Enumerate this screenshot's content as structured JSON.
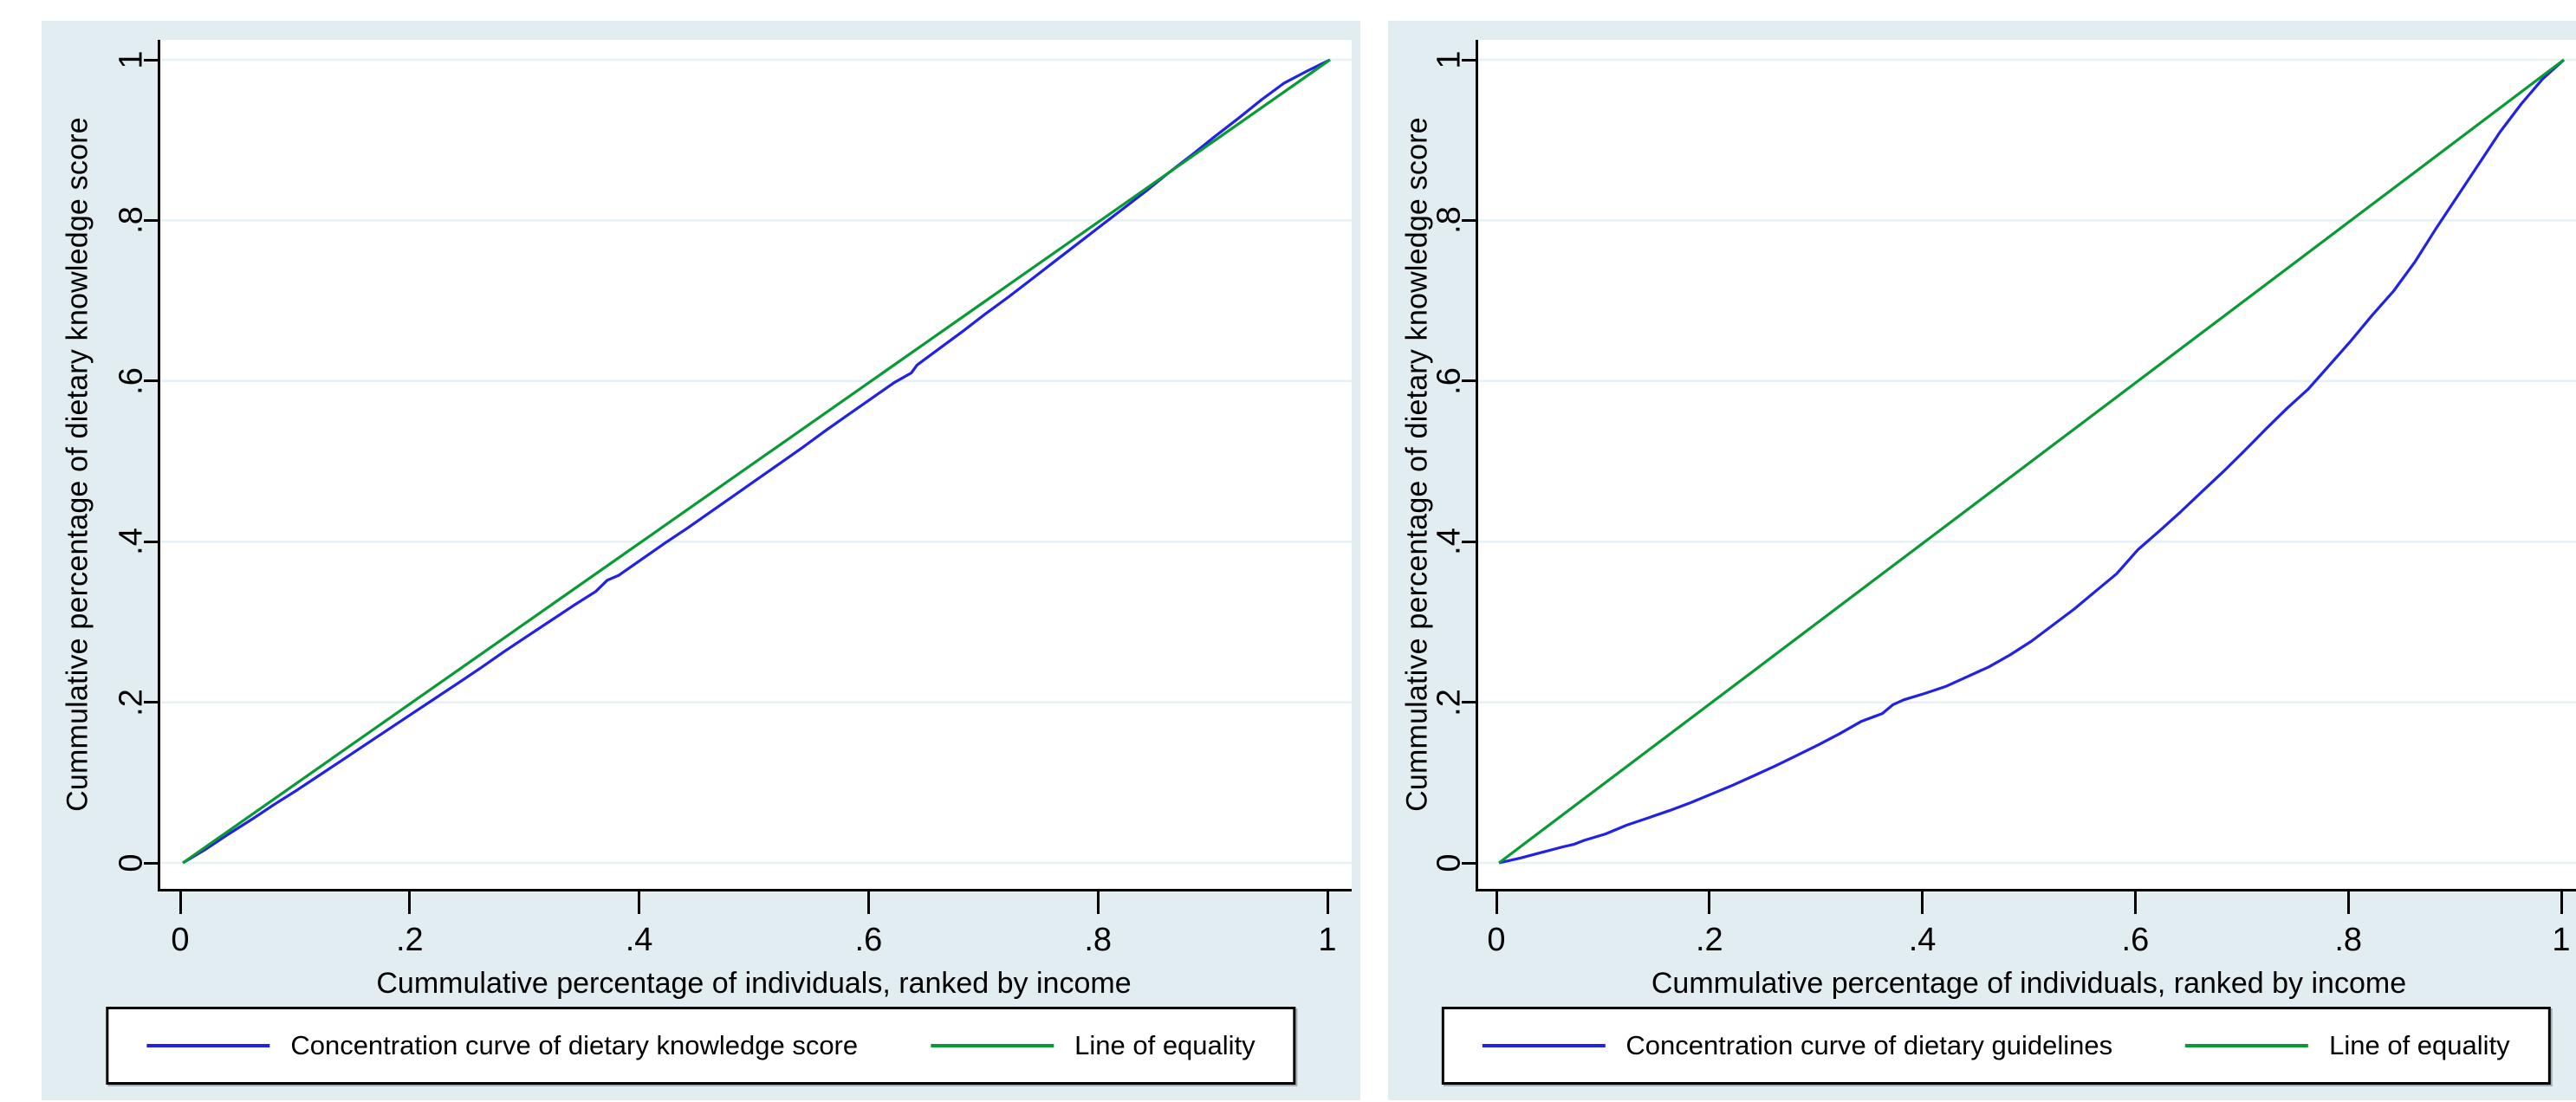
{
  "colors": {
    "page_background": "#ffffff",
    "graph_region_background": "#e1edf1",
    "plot_background": "#ffffff",
    "gridline": "#e5f1f4",
    "axis": "#000000",
    "text": "#000000",
    "concentration_curve": "#2121e8",
    "line_of_equality": "#0a9a35",
    "legend_background": "#ffffff",
    "legend_border": "#000000"
  },
  "charts": [
    {
      "y_axis_title": "Cummulative percentage of dietary knowledge score",
      "x_axis_title": "Cummulative percentage of individuals, ranked by income",
      "y_tick_labels": [
        "0",
        ".2",
        ".4",
        ".6",
        ".8",
        "1"
      ],
      "x_tick_labels": [
        "0",
        ".2",
        ".4",
        ".6",
        ".8",
        "1"
      ],
      "legend_labels": [
        "Concentration curve of dietary knowledge score",
        "Line of equality"
      ]
    },
    {
      "y_axis_title": "Cummulative percentage of dietary knowledge score",
      "x_axis_title": "Cummulative percentage of individuals, ranked by income",
      "y_tick_labels": [
        "0",
        ".2",
        ".4",
        ".6",
        ".8",
        "1"
      ],
      "x_tick_labels": [
        "0",
        ".2",
        ".4",
        ".6",
        ".8",
        "1"
      ],
      "legend_labels": [
        "Concentration curve of dietary guidelines",
        "Line of equality"
      ]
    }
  ],
  "chart_data": [
    {
      "type": "line",
      "title": "",
      "xlabel": "Cummulative percentage of individuals, ranked by income",
      "ylabel": "Cummulative percentage of dietary knowledge score",
      "xlim": [
        0,
        1
      ],
      "ylim": [
        0,
        1
      ],
      "x_ticks": [
        0,
        0.2,
        0.4,
        0.6,
        0.8,
        1
      ],
      "y_ticks": [
        0,
        0.2,
        0.4,
        0.6,
        0.8,
        1
      ],
      "grid": "horizontal-only",
      "legend_position": "bottom",
      "series": [
        {
          "name": "Concentration curve of dietary knowledge score",
          "color": "#2121e8",
          "points": [
            [
              0,
              0
            ],
            [
              0.02,
              0.017
            ],
            [
              0.04,
              0.036
            ],
            [
              0.06,
              0.054
            ],
            [
              0.08,
              0.073
            ],
            [
              0.1,
              0.091
            ],
            [
              0.12,
              0.11
            ],
            [
              0.14,
              0.129
            ],
            [
              0.16,
              0.148
            ],
            [
              0.18,
              0.167
            ],
            [
              0.2,
              0.186
            ],
            [
              0.22,
              0.205
            ],
            [
              0.24,
              0.224
            ],
            [
              0.26,
              0.243
            ],
            [
              0.28,
              0.263
            ],
            [
              0.3,
              0.282
            ],
            [
              0.32,
              0.301
            ],
            [
              0.34,
              0.32
            ],
            [
              0.36,
              0.338
            ],
            [
              0.37,
              0.352
            ],
            [
              0.38,
              0.358
            ],
            [
              0.4,
              0.378
            ],
            [
              0.42,
              0.398
            ],
            [
              0.44,
              0.417
            ],
            [
              0.46,
              0.437
            ],
            [
              0.48,
              0.457
            ],
            [
              0.5,
              0.477
            ],
            [
              0.52,
              0.497
            ],
            [
              0.54,
              0.517
            ],
            [
              0.56,
              0.538
            ],
            [
              0.58,
              0.558
            ],
            [
              0.6,
              0.578
            ],
            [
              0.62,
              0.598
            ],
            [
              0.635,
              0.61
            ],
            [
              0.64,
              0.62
            ],
            [
              0.66,
              0.641
            ],
            [
              0.68,
              0.662
            ],
            [
              0.7,
              0.684
            ],
            [
              0.72,
              0.705
            ],
            [
              0.74,
              0.727
            ],
            [
              0.76,
              0.749
            ],
            [
              0.78,
              0.771
            ],
            [
              0.8,
              0.793
            ],
            [
              0.82,
              0.815
            ],
            [
              0.84,
              0.837
            ],
            [
              0.86,
              0.86
            ],
            [
              0.88,
              0.882
            ],
            [
              0.9,
              0.905
            ],
            [
              0.92,
              0.927
            ],
            [
              0.94,
              0.95
            ],
            [
              0.96,
              0.971
            ],
            [
              0.98,
              0.986
            ],
            [
              1,
              1
            ]
          ]
        },
        {
          "name": "Line of equality",
          "color": "#0a9a35",
          "points": [
            [
              0,
              0
            ],
            [
              1,
              1
            ]
          ]
        }
      ]
    },
    {
      "type": "line",
      "title": "",
      "xlabel": "Cummulative percentage of individuals, ranked by income",
      "ylabel": "Cummulative percentage of dietary knowledge score",
      "xlim": [
        0,
        1
      ],
      "ylim": [
        0,
        1
      ],
      "x_ticks": [
        0,
        0.2,
        0.4,
        0.6,
        0.8,
        1
      ],
      "y_ticks": [
        0,
        0.2,
        0.4,
        0.6,
        0.8,
        1
      ],
      "grid": "horizontal-only",
      "legend_position": "bottom",
      "series": [
        {
          "name": "Concentration curve of dietary guidelines",
          "color": "#2121e8",
          "points": [
            [
              0,
              0
            ],
            [
              0.02,
              0.006
            ],
            [
              0.04,
              0.013
            ],
            [
              0.06,
              0.02
            ],
            [
              0.07,
              0.023
            ],
            [
              0.08,
              0.028
            ],
            [
              0.1,
              0.036
            ],
            [
              0.12,
              0.047
            ],
            [
              0.14,
              0.056
            ],
            [
              0.16,
              0.065
            ],
            [
              0.18,
              0.075
            ],
            [
              0.2,
              0.086
            ],
            [
              0.22,
              0.097
            ],
            [
              0.24,
              0.109
            ],
            [
              0.26,
              0.121
            ],
            [
              0.28,
              0.134
            ],
            [
              0.3,
              0.147
            ],
            [
              0.32,
              0.161
            ],
            [
              0.34,
              0.176
            ],
            [
              0.36,
              0.186
            ],
            [
              0.37,
              0.197
            ],
            [
              0.38,
              0.203
            ],
            [
              0.4,
              0.211
            ],
            [
              0.42,
              0.22
            ],
            [
              0.44,
              0.232
            ],
            [
              0.46,
              0.244
            ],
            [
              0.48,
              0.259
            ],
            [
              0.5,
              0.276
            ],
            [
              0.52,
              0.296
            ],
            [
              0.54,
              0.316
            ],
            [
              0.56,
              0.338
            ],
            [
              0.58,
              0.36
            ],
            [
              0.6,
              0.39
            ],
            [
              0.62,
              0.413
            ],
            [
              0.64,
              0.437
            ],
            [
              0.66,
              0.462
            ],
            [
              0.68,
              0.487
            ],
            [
              0.7,
              0.513
            ],
            [
              0.72,
              0.54
            ],
            [
              0.74,
              0.566
            ],
            [
              0.76,
              0.59
            ],
            [
              0.78,
              0.62
            ],
            [
              0.8,
              0.65
            ],
            [
              0.82,
              0.682
            ],
            [
              0.84,
              0.712
            ],
            [
              0.86,
              0.748
            ],
            [
              0.88,
              0.79
            ],
            [
              0.9,
              0.83
            ],
            [
              0.92,
              0.87
            ],
            [
              0.94,
              0.91
            ],
            [
              0.96,
              0.945
            ],
            [
              0.98,
              0.976
            ],
            [
              1,
              1
            ]
          ]
        },
        {
          "name": "Line of equality",
          "color": "#0a9a35",
          "points": [
            [
              0,
              0
            ],
            [
              1,
              1
            ]
          ]
        }
      ]
    }
  ]
}
